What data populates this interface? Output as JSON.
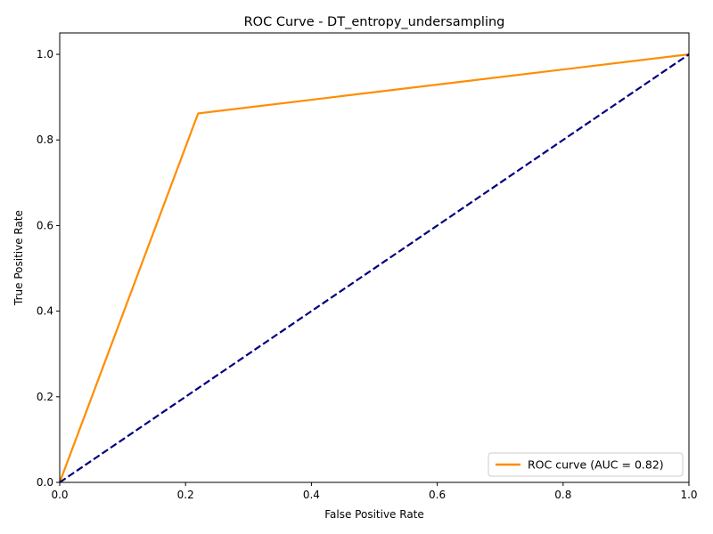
{
  "chart_data": {
    "type": "line",
    "title": "ROC Curve - DT_entropy_undersampling",
    "xlabel": "False Positive Rate",
    "ylabel": "True Positive Rate",
    "xlim": [
      0.0,
      1.0
    ],
    "ylim": [
      0.0,
      1.05
    ],
    "xticks": [
      0.0,
      0.2,
      0.4,
      0.6,
      0.8,
      1.0
    ],
    "yticks": [
      0.0,
      0.2,
      0.4,
      0.6,
      0.8,
      1.0
    ],
    "xtick_labels": [
      "0.0",
      "0.2",
      "0.4",
      "0.6",
      "0.8",
      "1.0"
    ],
    "ytick_labels": [
      "0.0",
      "0.2",
      "0.4",
      "0.6",
      "0.8",
      "1.0"
    ],
    "grid": false,
    "legend_position": "lower-right",
    "series": [
      {
        "name": "ROC curve (AUC = 0.82)",
        "color": "#ff8c00",
        "style": "solid",
        "x": [
          0.0,
          0.22,
          1.0
        ],
        "y": [
          0.0,
          0.862,
          1.0
        ]
      },
      {
        "color": "#000080",
        "style": "dashed",
        "x": [
          0.0,
          1.0
        ],
        "y": [
          0.0,
          1.0
        ]
      }
    ]
  }
}
